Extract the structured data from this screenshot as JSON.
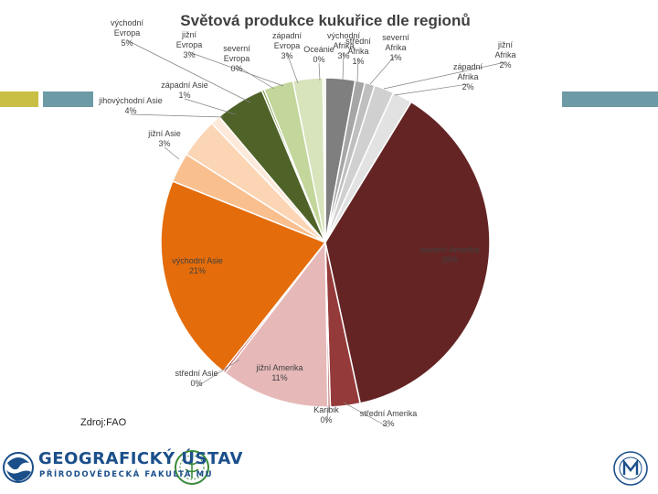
{
  "source_label": "Zdroj:FAO",
  "logos": {
    "geo_line1": "GEOGRAFICKÝ ÚSTAV",
    "geo_line2": "PŘÍRODOVĚDECKÁ FAKULTA MU"
  },
  "colors": {
    "accent_olive": "#c8bf44",
    "accent_teal": "#6c9ba5",
    "logo_blue": "#1b4f8a",
    "logo_green": "#3a8a3a"
  },
  "chart_data": {
    "type": "pie",
    "title": "Světová produkce kukuřice dle regionů",
    "slices": [
      {
        "name": "východní Afrika",
        "value": 3,
        "label": "východní Afrika",
        "pct": "3%",
        "color": "#7f7f7f"
      },
      {
        "name": "střední Afrika",
        "value": 1,
        "label": "střední Afrika",
        "pct": "1%",
        "color": "#a6a6a6"
      },
      {
        "name": "severní Afrika",
        "value": 1,
        "label": "severní Afrika",
        "pct": "1%",
        "color": "#bfbfbf"
      },
      {
        "name": "jižní Afrika",
        "value": 2,
        "label": "jižní Afrika",
        "pct": "2%",
        "color": "#d0d0d0"
      },
      {
        "name": "západní Afrika",
        "value": 2,
        "label": "západní Afrika",
        "pct": "2%",
        "color": "#e2e2e2"
      },
      {
        "name": "severní Amerika",
        "value": 39,
        "label": "severní Amerika",
        "pct": "39%",
        "color": "#642424"
      },
      {
        "name": "střední Amerika",
        "value": 3,
        "label": "střední Amerika",
        "pct": "3%",
        "color": "#953a3a"
      },
      {
        "name": "Karibik",
        "value": 0,
        "label": "Karibik",
        "pct": "0%",
        "color": "#b56a6a"
      },
      {
        "name": "jižní Amerika",
        "value": 11,
        "label": "jižní Amerika",
        "pct": "11%",
        "color": "#e6b8b8"
      },
      {
        "name": "střední Asie",
        "value": 0,
        "label": "střední Asie",
        "pct": "0%",
        "color": "#c0504d"
      },
      {
        "name": "východní Asie",
        "value": 21,
        "label": "východní Asie",
        "pct": "21%",
        "color": "#e46c0a"
      },
      {
        "name": "jižní Asie",
        "value": 3,
        "label": "jižní Asie",
        "pct": "3%",
        "color": "#f9bf8f"
      },
      {
        "name": "jihovýchodní Asie",
        "value": 4,
        "label": "jihovýchodní Asie",
        "pct": "4%",
        "color": "#fcd5b5"
      },
      {
        "name": "západní Asie",
        "value": 1,
        "label": "západní Asie",
        "pct": "1%",
        "color": "#fde9d9"
      },
      {
        "name": "východní Evropa",
        "value": 5,
        "label": "východní Evropa",
        "pct": "5%",
        "color": "#4f6228"
      },
      {
        "name": "severní Evropa",
        "value": 0,
        "label": "severní Evropa",
        "pct": "0%",
        "color": "#76923c"
      },
      {
        "name": "západní Evropa",
        "value": 3,
        "label": "západní Evropa",
        "pct": "3%",
        "color": "#c3d69b"
      },
      {
        "name": "jižní Evropa",
        "value": 3,
        "label": "jižní Evropa",
        "pct": "3%",
        "color": "#d7e4bc"
      },
      {
        "name": "Oceánie",
        "value": 0,
        "label": "Oceánie",
        "pct": "0%",
        "color": "#ebf1de"
      }
    ],
    "start_angle_deg": 0,
    "direction": "clockwise"
  }
}
